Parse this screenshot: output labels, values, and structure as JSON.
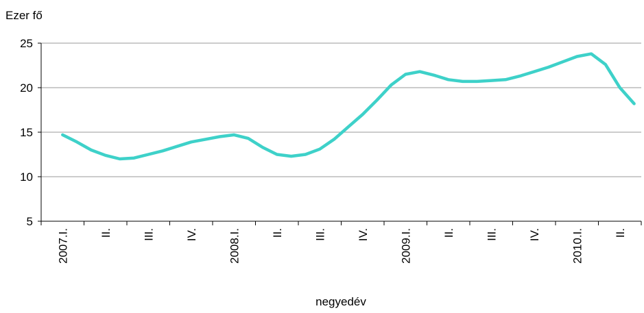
{
  "chart_data": {
    "type": "line",
    "y_axis_label": "Ezer fő",
    "x_axis_label": "negyedév",
    "categories": [
      null,
      "2007.I.",
      null,
      null,
      "II.",
      null,
      null,
      "III.",
      null,
      null,
      "IV.",
      null,
      null,
      "2008.I.",
      null,
      null,
      "II.",
      null,
      null,
      "III.",
      null,
      null,
      "IV.",
      null,
      null,
      "2009.I.",
      null,
      null,
      "II.",
      null,
      null,
      "III.",
      null,
      null,
      "IV.",
      null,
      null,
      "2010.I.",
      null,
      null,
      "II.",
      null
    ],
    "series": [
      {
        "color": "#3ed1c9",
        "values": [
          null,
          14.7,
          13.9,
          13.0,
          12.4,
          12.0,
          12.1,
          12.5,
          12.9,
          13.4,
          13.9,
          14.2,
          14.5,
          14.7,
          14.3,
          13.3,
          12.5,
          12.3,
          12.5,
          13.1,
          14.2,
          15.6,
          17.0,
          18.6,
          20.3,
          21.5,
          21.8,
          21.4,
          20.9,
          20.7,
          20.7,
          20.8,
          20.9,
          21.3,
          21.8,
          22.3,
          22.9,
          23.5,
          23.8,
          22.6,
          20.0,
          18.2
        ]
      }
    ],
    "ylim": [
      5,
      25
    ],
    "yticks": [
      5,
      10,
      15,
      20,
      25
    ],
    "grid": true
  }
}
